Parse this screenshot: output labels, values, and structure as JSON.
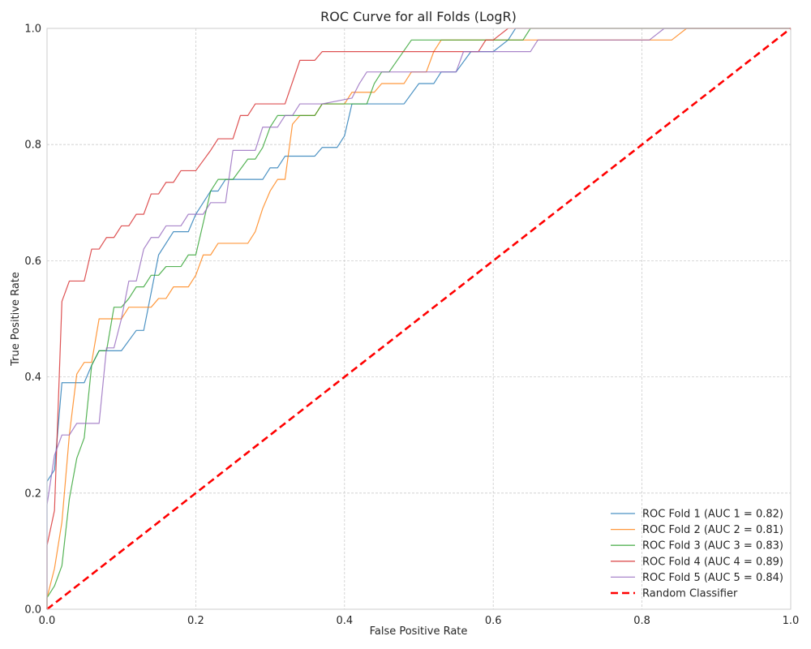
{
  "chart_data": {
    "type": "line",
    "title": "ROC Curve for all Folds (LogR)",
    "xlabel": "False Positive Rate",
    "ylabel": "True Positive Rate",
    "xlim": [
      0.0,
      1.0
    ],
    "ylim": [
      0.0,
      1.0
    ],
    "xticks": [
      "0.0",
      "0.2",
      "0.4",
      "0.6",
      "0.8",
      "1.0"
    ],
    "yticks": [
      "0.0",
      "0.2",
      "0.4",
      "0.6",
      "0.8",
      "1.0"
    ],
    "grid": true,
    "legend_position": "lower-right",
    "series": [
      {
        "name": "ROC Fold 1 (AUC 1 = 0.82)",
        "color": "#1f77b4",
        "points": [
          [
            0,
            0
          ],
          [
            0,
            0.22
          ],
          [
            0.01,
            0.24
          ],
          [
            0.02,
            0.39
          ],
          [
            0.05,
            0.39
          ],
          [
            0.06,
            0.42
          ],
          [
            0.07,
            0.445
          ],
          [
            0.1,
            0.445
          ],
          [
            0.12,
            0.48
          ],
          [
            0.13,
            0.48
          ],
          [
            0.15,
            0.61
          ],
          [
            0.17,
            0.65
          ],
          [
            0.19,
            0.65
          ],
          [
            0.2,
            0.68
          ],
          [
            0.22,
            0.72
          ],
          [
            0.23,
            0.72
          ],
          [
            0.24,
            0.74
          ],
          [
            0.29,
            0.74
          ],
          [
            0.3,
            0.76
          ],
          [
            0.31,
            0.76
          ],
          [
            0.32,
            0.78
          ],
          [
            0.36,
            0.78
          ],
          [
            0.37,
            0.795
          ],
          [
            0.39,
            0.795
          ],
          [
            0.4,
            0.815
          ],
          [
            0.41,
            0.87
          ],
          [
            0.48,
            0.87
          ],
          [
            0.5,
            0.905
          ],
          [
            0.52,
            0.905
          ],
          [
            0.53,
            0.925
          ],
          [
            0.55,
            0.925
          ],
          [
            0.57,
            0.96
          ],
          [
            0.6,
            0.96
          ],
          [
            0.62,
            0.98
          ],
          [
            0.63,
            1.0
          ],
          [
            1.0,
            1.0
          ]
        ]
      },
      {
        "name": "ROC Fold 2 (AUC 2 = 0.81)",
        "color": "#ff7f0e",
        "points": [
          [
            0,
            0
          ],
          [
            0,
            0.02
          ],
          [
            0.01,
            0.07
          ],
          [
            0.02,
            0.15
          ],
          [
            0.03,
            0.3
          ],
          [
            0.04,
            0.405
          ],
          [
            0.05,
            0.425
          ],
          [
            0.06,
            0.425
          ],
          [
            0.07,
            0.5
          ],
          [
            0.1,
            0.5
          ],
          [
            0.11,
            0.52
          ],
          [
            0.14,
            0.52
          ],
          [
            0.15,
            0.535
          ],
          [
            0.16,
            0.535
          ],
          [
            0.17,
            0.555
          ],
          [
            0.19,
            0.555
          ],
          [
            0.2,
            0.575
          ],
          [
            0.21,
            0.61
          ],
          [
            0.22,
            0.61
          ],
          [
            0.23,
            0.63
          ],
          [
            0.27,
            0.63
          ],
          [
            0.28,
            0.65
          ],
          [
            0.29,
            0.69
          ],
          [
            0.3,
            0.72
          ],
          [
            0.31,
            0.74
          ],
          [
            0.32,
            0.74
          ],
          [
            0.33,
            0.835
          ],
          [
            0.34,
            0.85
          ],
          [
            0.36,
            0.85
          ],
          [
            0.37,
            0.87
          ],
          [
            0.4,
            0.87
          ],
          [
            0.41,
            0.89
          ],
          [
            0.44,
            0.89
          ],
          [
            0.45,
            0.905
          ],
          [
            0.48,
            0.905
          ],
          [
            0.49,
            0.925
          ],
          [
            0.51,
            0.925
          ],
          [
            0.52,
            0.96
          ],
          [
            0.53,
            0.98
          ],
          [
            0.84,
            0.98
          ],
          [
            0.86,
            1.0
          ],
          [
            1.0,
            1.0
          ]
        ]
      },
      {
        "name": "ROC Fold 3 (AUC 3 = 0.83)",
        "color": "#2ca02c",
        "points": [
          [
            0,
            0
          ],
          [
            0,
            0.02
          ],
          [
            0.01,
            0.04
          ],
          [
            0.02,
            0.075
          ],
          [
            0.03,
            0.19
          ],
          [
            0.04,
            0.26
          ],
          [
            0.05,
            0.295
          ],
          [
            0.06,
            0.42
          ],
          [
            0.07,
            0.445
          ],
          [
            0.08,
            0.445
          ],
          [
            0.09,
            0.52
          ],
          [
            0.1,
            0.52
          ],
          [
            0.11,
            0.535
          ],
          [
            0.12,
            0.555
          ],
          [
            0.13,
            0.555
          ],
          [
            0.14,
            0.575
          ],
          [
            0.15,
            0.575
          ],
          [
            0.16,
            0.59
          ],
          [
            0.18,
            0.59
          ],
          [
            0.19,
            0.61
          ],
          [
            0.2,
            0.61
          ],
          [
            0.21,
            0.665
          ],
          [
            0.22,
            0.72
          ],
          [
            0.23,
            0.74
          ],
          [
            0.25,
            0.74
          ],
          [
            0.27,
            0.775
          ],
          [
            0.28,
            0.775
          ],
          [
            0.29,
            0.795
          ],
          [
            0.3,
            0.83
          ],
          [
            0.31,
            0.85
          ],
          [
            0.36,
            0.85
          ],
          [
            0.37,
            0.87
          ],
          [
            0.43,
            0.87
          ],
          [
            0.44,
            0.905
          ],
          [
            0.45,
            0.925
          ],
          [
            0.46,
            0.925
          ],
          [
            0.49,
            0.98
          ],
          [
            0.64,
            0.98
          ],
          [
            0.65,
            1.0
          ],
          [
            1.0,
            1.0
          ]
        ]
      },
      {
        "name": "ROC Fold 4 (AUC 4 = 0.89)",
        "color": "#d62728",
        "points": [
          [
            0,
            0
          ],
          [
            0,
            0.11
          ],
          [
            0.01,
            0.17
          ],
          [
            0.02,
            0.53
          ],
          [
            0.03,
            0.565
          ],
          [
            0.05,
            0.565
          ],
          [
            0.06,
            0.62
          ],
          [
            0.07,
            0.62
          ],
          [
            0.08,
            0.64
          ],
          [
            0.09,
            0.64
          ],
          [
            0.1,
            0.66
          ],
          [
            0.11,
            0.66
          ],
          [
            0.12,
            0.68
          ],
          [
            0.13,
            0.68
          ],
          [
            0.14,
            0.715
          ],
          [
            0.15,
            0.715
          ],
          [
            0.16,
            0.735
          ],
          [
            0.17,
            0.735
          ],
          [
            0.18,
            0.755
          ],
          [
            0.2,
            0.755
          ],
          [
            0.22,
            0.79
          ],
          [
            0.23,
            0.81
          ],
          [
            0.25,
            0.81
          ],
          [
            0.26,
            0.85
          ],
          [
            0.27,
            0.85
          ],
          [
            0.28,
            0.87
          ],
          [
            0.32,
            0.87
          ],
          [
            0.34,
            0.945
          ],
          [
            0.36,
            0.945
          ],
          [
            0.37,
            0.96
          ],
          [
            0.58,
            0.96
          ],
          [
            0.59,
            0.98
          ],
          [
            0.6,
            0.98
          ],
          [
            0.62,
            1.0
          ],
          [
            1.0,
            1.0
          ]
        ]
      },
      {
        "name": "ROC Fold 5 (AUC 5 = 0.84)",
        "color": "#9467bd",
        "points": [
          [
            0,
            0
          ],
          [
            0,
            0.18
          ],
          [
            0.01,
            0.265
          ],
          [
            0.02,
            0.3
          ],
          [
            0.03,
            0.3
          ],
          [
            0.04,
            0.32
          ],
          [
            0.07,
            0.32
          ],
          [
            0.08,
            0.45
          ],
          [
            0.09,
            0.45
          ],
          [
            0.1,
            0.5
          ],
          [
            0.11,
            0.565
          ],
          [
            0.12,
            0.565
          ],
          [
            0.13,
            0.62
          ],
          [
            0.14,
            0.64
          ],
          [
            0.15,
            0.64
          ],
          [
            0.16,
            0.66
          ],
          [
            0.18,
            0.66
          ],
          [
            0.19,
            0.68
          ],
          [
            0.21,
            0.68
          ],
          [
            0.22,
            0.7
          ],
          [
            0.24,
            0.7
          ],
          [
            0.25,
            0.79
          ],
          [
            0.28,
            0.79
          ],
          [
            0.29,
            0.83
          ],
          [
            0.31,
            0.83
          ],
          [
            0.32,
            0.85
          ],
          [
            0.33,
            0.85
          ],
          [
            0.34,
            0.87
          ],
          [
            0.36,
            0.87
          ],
          [
            0.37,
            0.87
          ],
          [
            0.41,
            0.88
          ],
          [
            0.42,
            0.905
          ],
          [
            0.43,
            0.925
          ],
          [
            0.55,
            0.925
          ],
          [
            0.56,
            0.96
          ],
          [
            0.65,
            0.96
          ],
          [
            0.66,
            0.98
          ],
          [
            0.81,
            0.98
          ],
          [
            0.83,
            1.0
          ],
          [
            1.0,
            1.0
          ]
        ]
      },
      {
        "name": "Random Classifier",
        "color": "#ff0000",
        "dashed": true,
        "points": [
          [
            0,
            0
          ],
          [
            1,
            1
          ]
        ]
      }
    ]
  }
}
